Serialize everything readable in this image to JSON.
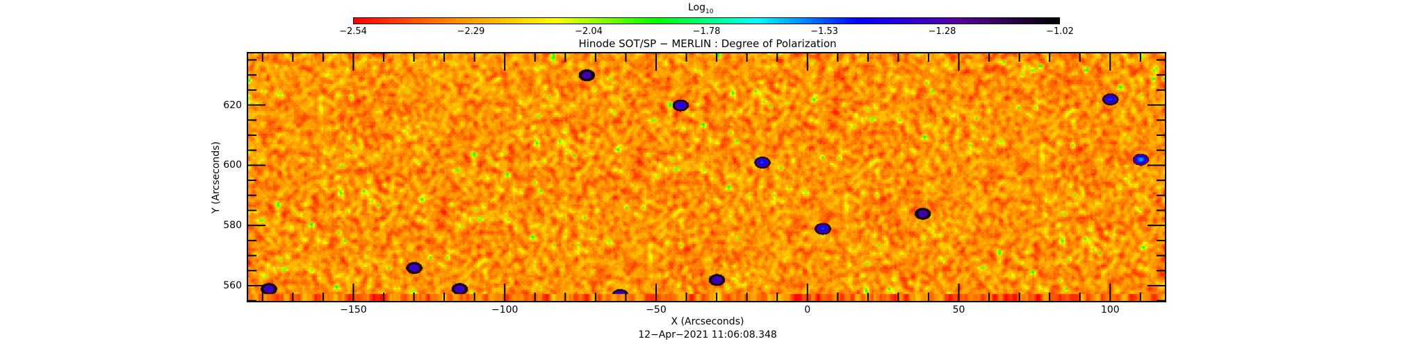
{
  "chart_data": {
    "type": "heatmap",
    "title": "Hinode SOT/SP − MERLIN : Degree of Polarization",
    "xlabel": "X (Arcseconds)",
    "ylabel": "Y (Arcseconds)",
    "footer": "12−Apr−2021  11:06:08.348",
    "xlim": [
      -185,
      118.3
    ],
    "ylim": [
      554.7,
      637.4
    ],
    "xticks": [
      -150,
      -100,
      -50,
      0,
      50,
      100
    ],
    "xtick_labels": [
      "−150",
      "−100",
      "−50",
      "0",
      "50",
      "100"
    ],
    "yticks": [
      560,
      580,
      600,
      620
    ],
    "ytick_labels": [
      "560",
      "580",
      "600",
      "620"
    ],
    "colorbar": {
      "label": "Log",
      "label_sub": "10",
      "range": [
        -2.54,
        -1.02
      ],
      "tick_labels": [
        "−2.54",
        "−2.29",
        "−2.04",
        "−1.78",
        "−1.53",
        "−1.28",
        "−1.02"
      ],
      "colors": [
        "#ff0000",
        "#ff8c00",
        "#ffff00",
        "#00ff00",
        "#00ffff",
        "#0000ff",
        "#5a00a0",
        "#000000"
      ]
    },
    "dominant_range": [
      -2.45,
      -2.15
    ],
    "features": [
      {
        "x": -73,
        "y": 630,
        "value": -1.35
      },
      {
        "x": 38,
        "y": 584,
        "value": -1.35
      },
      {
        "x": -130,
        "y": 566,
        "value": -1.4
      },
      {
        "x": -30,
        "y": 562,
        "value": -1.4
      },
      {
        "x": -42,
        "y": 620,
        "value": -1.45
      },
      {
        "x": -178,
        "y": 559,
        "value": -1.4
      },
      {
        "x": -62,
        "y": 557,
        "value": -1.45
      },
      {
        "x": -115,
        "y": 559,
        "value": -1.4
      },
      {
        "x": -15,
        "y": 601,
        "value": -1.5
      },
      {
        "x": 5,
        "y": 579,
        "value": -1.5
      },
      {
        "x": 100,
        "y": 622,
        "value": -1.5
      },
      {
        "x": 110,
        "y": 602,
        "value": -1.6
      }
    ]
  }
}
